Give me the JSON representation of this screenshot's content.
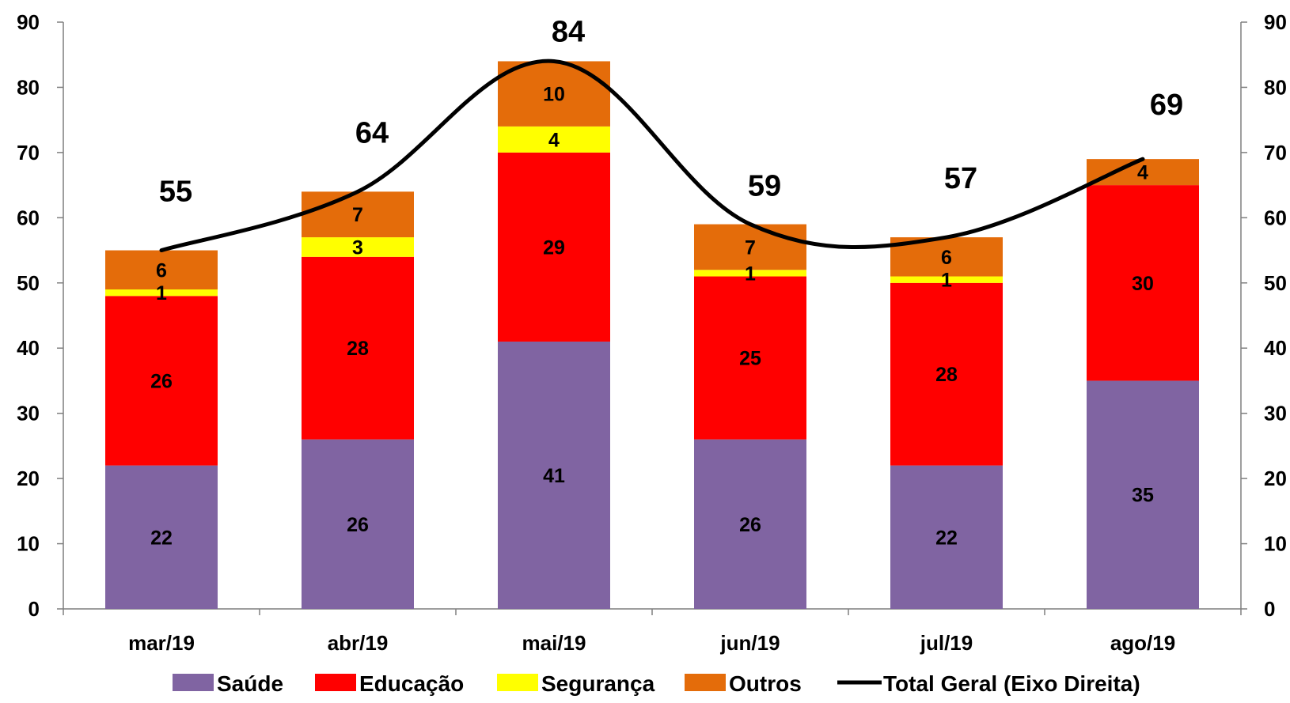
{
  "chart_data": {
    "type": "bar",
    "stacked": true,
    "categories": [
      "mar/19",
      "abr/19",
      "mai/19",
      "jun/19",
      "jul/19",
      "ago/19"
    ],
    "series": [
      {
        "name": "Saúde",
        "color": "#8064A2",
        "values": [
          22,
          26,
          41,
          26,
          22,
          35
        ]
      },
      {
        "name": "Educação",
        "color": "#FF0000",
        "values": [
          26,
          28,
          29,
          25,
          28,
          30
        ]
      },
      {
        "name": "Segurança",
        "color": "#FFFF00",
        "values": [
          1,
          3,
          4,
          1,
          1,
          null
        ]
      },
      {
        "name": "Outros",
        "color": "#E46C0A",
        "values": [
          6,
          7,
          10,
          7,
          6,
          4
        ]
      }
    ],
    "line_series": {
      "name": "Total Geral (Eixo Direita)",
      "color": "#000000",
      "axis": "right",
      "values": [
        55,
        64,
        84,
        59,
        57,
        69
      ]
    },
    "ylim": [
      0,
      90
    ],
    "y_right_lim": [
      0,
      90
    ],
    "y_ticks": [
      "0",
      "10",
      "20",
      "30",
      "40",
      "50",
      "60",
      "70",
      "80",
      "90"
    ],
    "grid": false,
    "legend_position": "bottom"
  }
}
